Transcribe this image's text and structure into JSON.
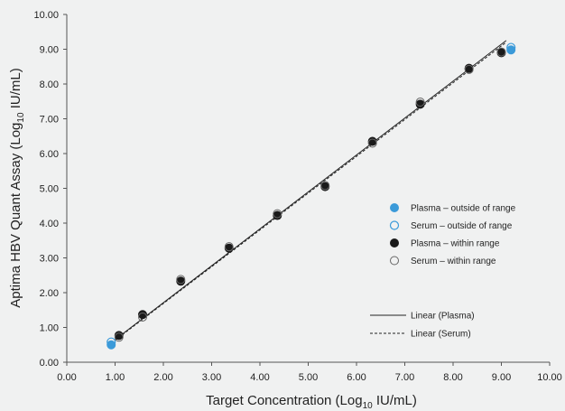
{
  "colors": {
    "background": "#f0f1f1",
    "plasma_outside": "#3b9ad9",
    "serum_outside_stroke": "#3b9ad9",
    "plasma_within": "#1a1a1a",
    "serum_within_stroke": "#666666",
    "axis": "#555555",
    "line": "#222222"
  },
  "chart_data": {
    "type": "scatter",
    "title": "",
    "xlabel": {
      "prefix": "Target Concentration (Log",
      "sub": "10",
      "suffix": " IU/mL)"
    },
    "ylabel": {
      "prefix": "Aptima HBV Quant Assay (Log",
      "sub": "10",
      "suffix": " IU/mL)"
    },
    "xlim": [
      0,
      10
    ],
    "ylim": [
      0,
      10
    ],
    "xticks": [
      "0.00",
      "1.00",
      "2.00",
      "3.00",
      "4.00",
      "5.00",
      "6.00",
      "7.00",
      "8.00",
      "9.00",
      "10.00"
    ],
    "yticks": [
      "0.00",
      "1.00",
      "2.00",
      "3.00",
      "4.00",
      "5.00",
      "6.00",
      "7.00",
      "8.00",
      "9.00",
      "10.00"
    ],
    "grid": false,
    "legend_position": "right",
    "series": [
      {
        "name": "Plasma – outside of range",
        "marker": "filled-blue",
        "points": [
          [
            0.92,
            0.5
          ],
          [
            9.2,
            8.98
          ]
        ]
      },
      {
        "name": "Serum – outside of range",
        "marker": "open-blue",
        "points": [
          [
            0.92,
            0.58
          ],
          [
            9.2,
            9.05
          ]
        ]
      },
      {
        "name": "Plasma – within range",
        "marker": "filled-black",
        "points": [
          [
            1.08,
            0.77
          ],
          [
            1.57,
            1.37
          ],
          [
            2.36,
            2.33
          ],
          [
            3.36,
            3.28
          ],
          [
            4.36,
            4.22
          ],
          [
            5.35,
            5.05
          ],
          [
            6.33,
            6.35
          ],
          [
            7.32,
            7.42
          ],
          [
            8.33,
            8.45
          ],
          [
            9.0,
            8.9
          ]
        ]
      },
      {
        "name": "Serum – within range",
        "marker": "open-gray",
        "points": [
          [
            1.08,
            0.72
          ],
          [
            1.57,
            1.3
          ],
          [
            2.36,
            2.38
          ],
          [
            3.36,
            3.32
          ],
          [
            4.36,
            4.27
          ],
          [
            5.35,
            5.08
          ],
          [
            6.33,
            6.3
          ],
          [
            7.32,
            7.48
          ],
          [
            8.33,
            8.42
          ],
          [
            9.0,
            8.92
          ]
        ]
      }
    ],
    "lines": [
      {
        "name": "Linear (Plasma)",
        "style": "solid",
        "from": [
          1.0,
          0.65
        ],
        "to": [
          9.1,
          9.25
        ]
      },
      {
        "name": "Linear (Serum)",
        "style": "dashed",
        "from": [
          1.0,
          0.63
        ],
        "to": [
          9.1,
          9.2
        ]
      }
    ]
  }
}
